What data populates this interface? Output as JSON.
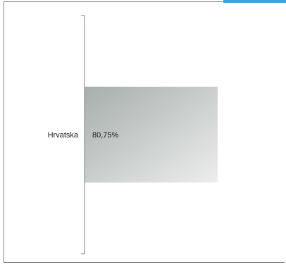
{
  "chart_data": {
    "type": "bar",
    "orientation": "horizontal",
    "categories": [
      "Hrvatska"
    ],
    "values": [
      80.75
    ],
    "data_labels": [
      "80,75%"
    ],
    "xlim": [
      0,
      100
    ],
    "grid": false,
    "bar_fill": "gradient",
    "bar_colors": [
      "#a7aeac",
      "#eceeed"
    ],
    "axis_color": "#7f7f7f",
    "frame_color": "#7f7f7f",
    "accent_color": "#41a0dc"
  }
}
